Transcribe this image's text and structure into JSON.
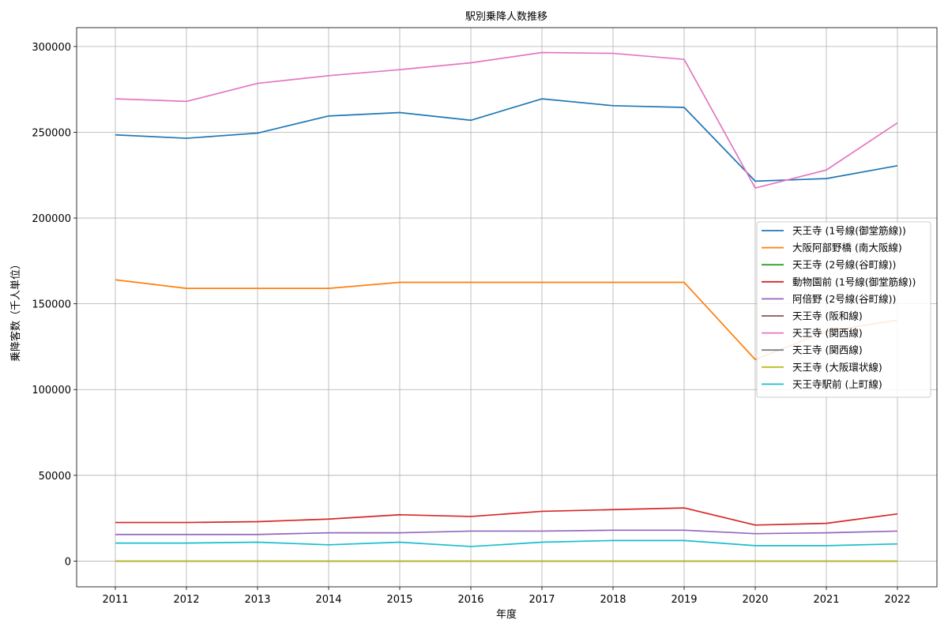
{
  "chart_data": {
    "type": "line",
    "title": "駅別乗降人数推移",
    "xlabel": "年度",
    "ylabel": "乗降客数（千人単位）",
    "x": [
      "2011",
      "2012",
      "2013",
      "2014",
      "2015",
      "2016",
      "2017",
      "2018",
      "2019",
      "2020",
      "2021",
      "2022"
    ],
    "ylim": [
      -15000,
      311000
    ],
    "yticks": [
      "0",
      "50000",
      "100000",
      "150000",
      "200000",
      "250000",
      "300000"
    ],
    "grid": true,
    "legend_position": "center-right",
    "series": [
      {
        "name": "天王寺 (1号線(御堂筋線))",
        "color": "#1f77b4",
        "values": [
          248500,
          246500,
          249500,
          259500,
          261500,
          257000,
          269500,
          265500,
          264500,
          221500,
          223000,
          230500
        ]
      },
      {
        "name": "大阪阿部野橋 (南大阪線)",
        "color": "#ff7f0e",
        "values": [
          164000,
          159000,
          159000,
          159000,
          162500,
          162500,
          162500,
          162500,
          162500,
          117500,
          134000,
          140500
        ]
      },
      {
        "name": "天王寺 (2号線(谷町線))",
        "color": "#2ca02c",
        "values": [
          0,
          0,
          0,
          0,
          0,
          0,
          0,
          0,
          0,
          0,
          0,
          0
        ]
      },
      {
        "name": "動物園前 (1号線(御堂筋線))",
        "color": "#d62728",
        "values": [
          22500,
          22500,
          23000,
          24500,
          27000,
          26000,
          29000,
          30000,
          31000,
          21000,
          22000,
          27500
        ]
      },
      {
        "name": "阿倍野 (2号線(谷町線))",
        "color": "#9467bd",
        "values": [
          15500,
          15500,
          15500,
          16500,
          16500,
          17500,
          17500,
          18000,
          18000,
          16000,
          16500,
          17500
        ]
      },
      {
        "name": "天王寺 (阪和線)",
        "color": "#8c564b",
        "values": [
          0,
          0,
          0,
          0,
          0,
          0,
          0,
          0,
          0,
          0,
          0,
          0
        ]
      },
      {
        "name": "天王寺 (関西線)",
        "color": "#e377c2",
        "values": [
          269500,
          268000,
          278500,
          283000,
          286500,
          290500,
          296500,
          296000,
          292500,
          217500,
          228000,
          255500
        ]
      },
      {
        "name": "天王寺 (関西線)",
        "color": "#7f7f7f",
        "values": [
          0,
          0,
          0,
          0,
          0,
          0,
          0,
          0,
          0,
          0,
          0,
          0
        ]
      },
      {
        "name": "天王寺 (大阪環状線)",
        "color": "#bcbd22",
        "values": [
          0,
          0,
          0,
          0,
          0,
          0,
          0,
          0,
          0,
          0,
          0,
          0
        ]
      },
      {
        "name": "天王寺駅前 (上町線)",
        "color": "#17becf",
        "values": [
          10500,
          10500,
          11000,
          9500,
          11000,
          8500,
          11000,
          12000,
          12000,
          9000,
          9000,
          10000
        ]
      }
    ]
  }
}
